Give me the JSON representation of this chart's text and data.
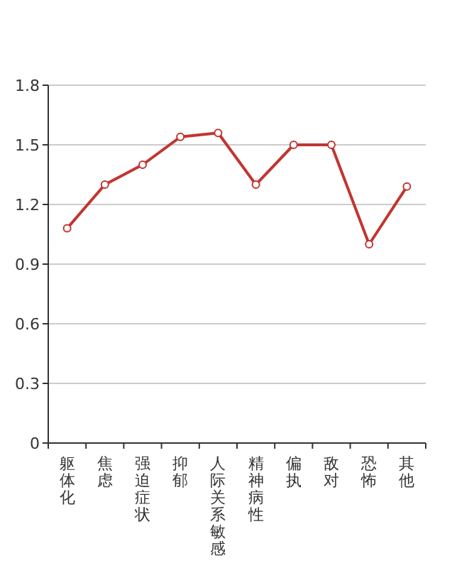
{
  "chart_data": {
    "type": "line",
    "categories": [
      "躯体化",
      "焦虑",
      "强迫症状",
      "抑郁",
      "人际关系敏感",
      "精神病性",
      "偏执",
      "敌对",
      "恐怖",
      "其他"
    ],
    "values": [
      1.08,
      1.3,
      1.4,
      1.54,
      1.56,
      1.3,
      1.5,
      1.5,
      1.0,
      1.29
    ],
    "color": "#c23531",
    "ylim": [
      0,
      1.8
    ],
    "yticks": [
      0,
      0.3,
      0.6,
      0.9,
      1.2,
      1.5,
      1.8
    ],
    "grid": "y",
    "marker": "circle",
    "line_style": "solid"
  }
}
